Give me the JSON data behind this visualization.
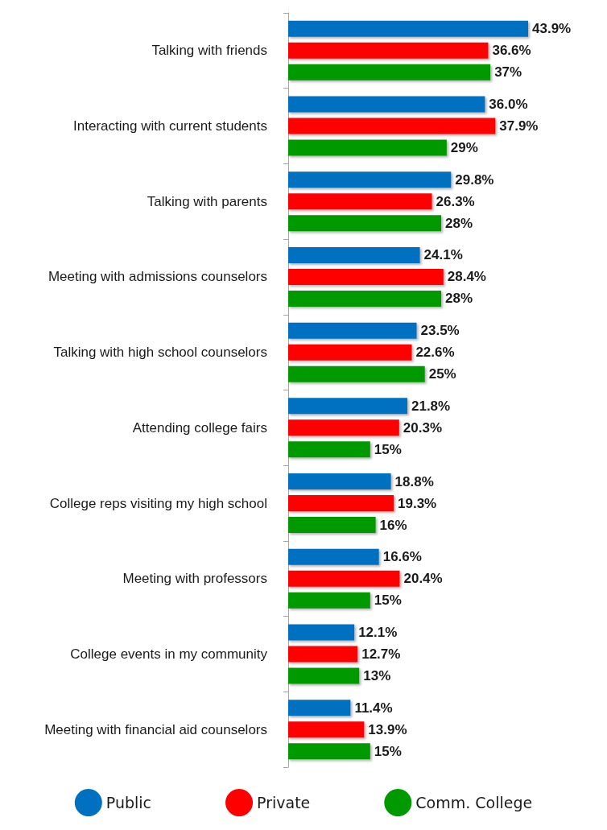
{
  "chart_data": {
    "type": "bar",
    "orientation": "horizontal",
    "categories": [
      "Talking with friends",
      "Interacting with current students",
      "Talking with parents",
      "Meeting with admissions counselors",
      "Talking with high school counselors",
      "Attending college fairs",
      "College reps visiting my high school",
      "Meeting with professors",
      "College events in my community",
      "Meeting with financial aid counselors"
    ],
    "series": [
      {
        "name": "Public",
        "color": "#0070c0",
        "values": [
          43.9,
          36.0,
          29.8,
          24.1,
          23.5,
          21.8,
          18.8,
          16.6,
          12.1,
          11.4
        ],
        "value_labels": [
          "43.9%",
          "36.0%",
          "29.8%",
          "24.1%",
          "23.5%",
          "21.8%",
          "18.8%",
          "16.6%",
          "12.1%",
          "11.4%"
        ]
      },
      {
        "name": "Private",
        "color": "#ff0000",
        "values": [
          36.6,
          37.9,
          26.3,
          28.4,
          22.6,
          20.3,
          19.3,
          20.4,
          12.7,
          13.9
        ],
        "value_labels": [
          "36.6%",
          "37.9%",
          "26.3%",
          "28.4%",
          "22.6%",
          "20.3%",
          "19.3%",
          "20.4%",
          "12.7%",
          "13.9%"
        ]
      },
      {
        "name": "Comm. College",
        "color": "#009900",
        "values": [
          37,
          29,
          28,
          28,
          25,
          15,
          16,
          15,
          13,
          15
        ],
        "value_labels": [
          "37%",
          "29%",
          "28%",
          "28%",
          "25%",
          "15%",
          "16%",
          "15%",
          "13%",
          "15%"
        ]
      }
    ],
    "legend": "bottom"
  }
}
